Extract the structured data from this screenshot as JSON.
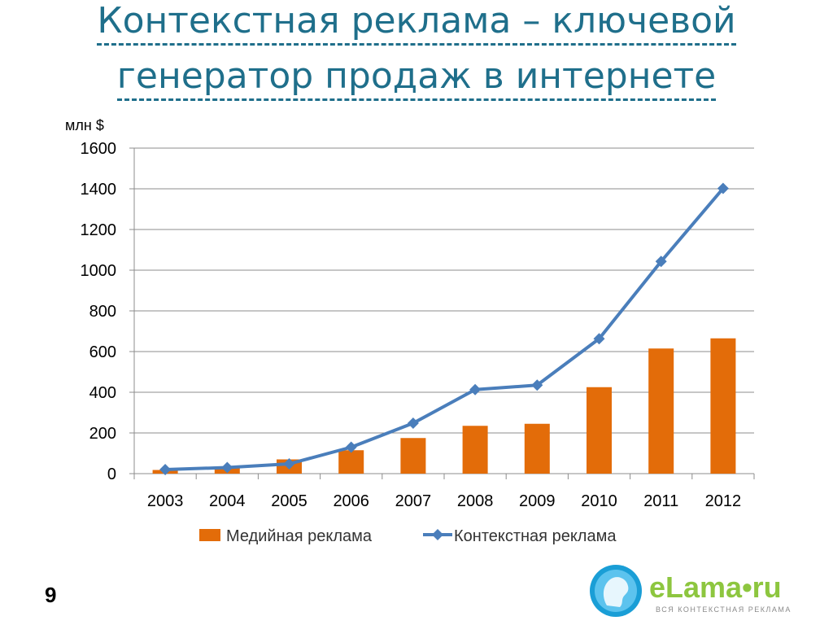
{
  "title": {
    "line1": "Контекстная реклама – ключевой",
    "line2": "генератор продаж в интернете"
  },
  "page_number": "9",
  "logo": {
    "name": "eLama•ru",
    "tagline": "ВСЯ КОНТЕКСТНАЯ РЕКЛАМА"
  },
  "chart_data": {
    "type": "bar",
    "unit_label": "млн $",
    "categories": [
      "2003",
      "2004",
      "2005",
      "2006",
      "2007",
      "2008",
      "2009",
      "2010",
      "2011",
      "2012"
    ],
    "series": [
      {
        "name": "Медийная реклама",
        "type": "bar",
        "color": "#e36c09",
        "values": [
          18,
          28,
          70,
          115,
          175,
          235,
          245,
          425,
          615,
          665
        ]
      },
      {
        "name": "Контекстная реклама",
        "type": "line",
        "color": "#4a7ebb",
        "values": [
          20,
          30,
          48,
          130,
          248,
          413,
          435,
          663,
          1043,
          1402
        ]
      }
    ],
    "ylim": [
      0,
      1600
    ],
    "yticks": [
      0,
      200,
      400,
      600,
      800,
      1000,
      1200,
      1400,
      1600
    ],
    "grid": true,
    "legend": "bottom"
  }
}
